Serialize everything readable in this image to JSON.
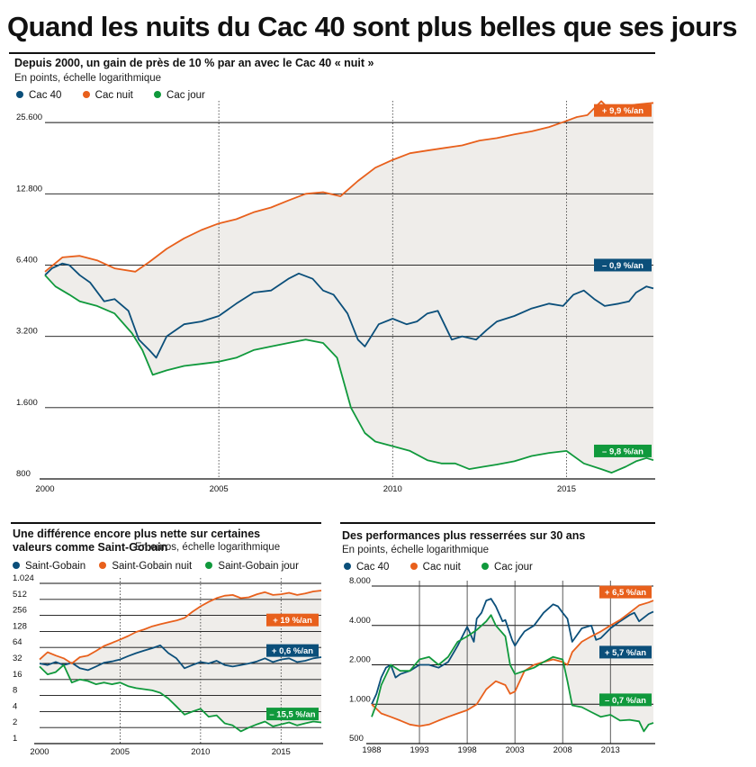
{
  "headline": "Quand les nuits du Cac 40 sont plus belles que ses jours",
  "colors": {
    "cac40": "#0b4f7a",
    "nuit": "#e8601c",
    "jour": "#10993c",
    "fill": "#efedea"
  },
  "chart_data": [
    {
      "type": "line",
      "title": "Depuis 2000, un gain de près de 10 % par an avec le Cac 40 « nuit »",
      "subtitle": "En points, échelle logarithmique",
      "yscale": "log",
      "ylim": [
        800,
        30000
      ],
      "xlim": [
        2000,
        2017.5
      ],
      "yticks": [
        800,
        1600,
        3200,
        6400,
        12800,
        25600
      ],
      "yticklabels": [
        "800",
        "1.600",
        "3.200",
        "6.400",
        "12.800",
        "25.600"
      ],
      "xticks": [
        2000,
        2005,
        2010,
        2015
      ],
      "xticklabels": [
        "2000",
        "2005",
        "2010",
        "2015"
      ],
      "series": [
        {
          "name": "Cac 40",
          "key": "cac40",
          "tag": "– 0,9 %/an",
          "tag_y": 6400,
          "x": [
            2000,
            2000.2,
            2000.5,
            2000.7,
            2001,
            2001.3,
            2001.7,
            2002,
            2002.4,
            2002.7,
            2003,
            2003.2,
            2003.5,
            2004,
            2004.5,
            2005,
            2005.5,
            2006,
            2006.5,
            2007,
            2007.3,
            2007.7,
            2008,
            2008.3,
            2008.7,
            2009,
            2009.2,
            2009.6,
            2010,
            2010.4,
            2010.7,
            2011,
            2011.3,
            2011.7,
            2012,
            2012.4,
            2012.7,
            2013,
            2013.5,
            2014,
            2014.5,
            2014.9,
            2015.2,
            2015.5,
            2015.8,
            2016.1,
            2016.5,
            2016.8,
            2017,
            2017.3,
            2017.5
          ],
          "y": [
            5800,
            6200,
            6500,
            6400,
            5800,
            5400,
            4500,
            4600,
            4100,
            3100,
            2800,
            2600,
            3200,
            3600,
            3700,
            3900,
            4400,
            4900,
            5000,
            5600,
            5900,
            5600,
            5000,
            4800,
            4000,
            3100,
            2900,
            3600,
            3800,
            3600,
            3700,
            4000,
            4100,
            3100,
            3200,
            3100,
            3400,
            3700,
            3900,
            4200,
            4400,
            4300,
            4800,
            5000,
            4600,
            4300,
            4400,
            4500,
            4900,
            5200,
            5100
          ]
        },
        {
          "name": "Cac nuit",
          "key": "nuit",
          "tag": "+ 9,9 %/an",
          "tag_y": 28800,
          "x": [
            2000,
            2000.5,
            2001,
            2001.5,
            2002,
            2002.6,
            2003,
            2003.5,
            2004,
            2004.5,
            2005,
            2005.5,
            2006,
            2006.5,
            2007,
            2007.5,
            2008,
            2008.5,
            2009,
            2009.5,
            2010,
            2010.5,
            2011,
            2011.5,
            2012,
            2012.5,
            2013,
            2013.5,
            2014,
            2014.5,
            2015,
            2015.3,
            2015.6,
            2016,
            2016.3,
            2016.6,
            2017,
            2017.5
          ],
          "y": [
            6000,
            6900,
            7000,
            6700,
            6200,
            6000,
            6600,
            7500,
            8300,
            9000,
            9600,
            10000,
            10700,
            11200,
            12000,
            12800,
            13000,
            12500,
            14500,
            16500,
            17800,
            19000,
            19500,
            20000,
            20500,
            21500,
            22000,
            22800,
            23500,
            24500,
            26000,
            27000,
            27500,
            31500,
            28500,
            29800,
            30500,
            31000
          ]
        },
        {
          "name": "Cac jour",
          "key": "jour",
          "tag": "– 9,8 %/an",
          "tag_y": 1050,
          "x": [
            2000,
            2000.3,
            2000.7,
            2001,
            2001.5,
            2002,
            2002.5,
            2002.8,
            2003.1,
            2003.5,
            2004,
            2004.5,
            2005,
            2005.5,
            2006,
            2006.5,
            2007,
            2007.5,
            2008,
            2008.4,
            2008.8,
            2009.2,
            2009.5,
            2010,
            2010.5,
            2011,
            2011.4,
            2011.8,
            2012.2,
            2012.6,
            2013,
            2013.5,
            2014,
            2014.5,
            2015,
            2015.5,
            2016,
            2016.3,
            2016.7,
            2017,
            2017.3,
            2017.5
          ],
          "y": [
            5800,
            5200,
            4800,
            4500,
            4300,
            4000,
            3300,
            2800,
            2200,
            2300,
            2400,
            2450,
            2500,
            2600,
            2800,
            2900,
            3000,
            3100,
            3000,
            2600,
            1600,
            1250,
            1150,
            1100,
            1050,
            960,
            930,
            930,
            880,
            900,
            920,
            950,
            1000,
            1030,
            1050,
            930,
            880,
            850,
            900,
            950,
            980,
            960
          ]
        }
      ]
    },
    {
      "type": "line",
      "title": "Une différence encore plus nette sur certaines valeurs comme Saint-Gobain",
      "subtitle": "En euros, échelle logarithmique",
      "yscale": "log",
      "ylim": [
        1,
        1024
      ],
      "xlim": [
        2000,
        2017.5
      ],
      "yticks": [
        1,
        2,
        4,
        8,
        16,
        32,
        64,
        128,
        256,
        512,
        1024
      ],
      "yticklabels": [
        "1",
        "2",
        "4",
        "8",
        "16",
        "32",
        "64",
        "128",
        "256",
        "512",
        "1.024"
      ],
      "xticks": [
        2000,
        2005,
        2010,
        2015
      ],
      "xticklabels": [
        "2000",
        "2005",
        "2010",
        "2015"
      ],
      "series": [
        {
          "name": "Saint-Gobain",
          "key": "cac40",
          "tag": "+ 0,6 %/an",
          "tag_y": 56,
          "x": [
            2000,
            2000.5,
            2001,
            2001.5,
            2002,
            2002.5,
            2003,
            2003.5,
            2004,
            2004.5,
            2005,
            2005.5,
            2006,
            2006.5,
            2007,
            2007.5,
            2008,
            2008.5,
            2009,
            2009.5,
            2010,
            2010.5,
            2011,
            2011.5,
            2012,
            2012.5,
            2013,
            2013.5,
            2014,
            2014.5,
            2015,
            2015.5,
            2016,
            2016.5,
            2017,
            2017.5
          ],
          "y": [
            32,
            30,
            34,
            30,
            33,
            26,
            24,
            28,
            33,
            35,
            38,
            44,
            50,
            56,
            62,
            70,
            50,
            40,
            26,
            30,
            34,
            32,
            36,
            30,
            28,
            30,
            32,
            35,
            40,
            34,
            38,
            40,
            34,
            36,
            40,
            42
          ]
        },
        {
          "name": "Saint-Gobain nuit",
          "key": "nuit",
          "tag": "+ 19 %/an",
          "tag_y": 210,
          "x": [
            2000,
            2000.5,
            2001,
            2001.5,
            2002,
            2002.5,
            2003,
            2003.5,
            2004,
            2004.5,
            2005,
            2005.5,
            2006,
            2006.5,
            2007,
            2007.5,
            2008,
            2008.5,
            2009,
            2009.5,
            2010,
            2010.5,
            2011,
            2011.5,
            2012,
            2012.5,
            2013,
            2013.5,
            2014,
            2014.5,
            2015,
            2015.5,
            2016,
            2016.5,
            2017,
            2017.5
          ],
          "y": [
            38,
            52,
            45,
            40,
            32,
            42,
            45,
            55,
            68,
            78,
            90,
            105,
            125,
            140,
            160,
            175,
            190,
            205,
            230,
            300,
            380,
            460,
            540,
            600,
            620,
            540,
            560,
            640,
            700,
            620,
            640,
            680,
            620,
            660,
            720,
            750
          ]
        },
        {
          "name": "Saint-Gobain jour",
          "key": "jour",
          "tag": "– 15,5 %/an",
          "tag_y": 3.6,
          "x": [
            2000,
            2000.5,
            2001,
            2001.5,
            2002,
            2002.5,
            2003,
            2003.5,
            2004,
            2004.5,
            2005,
            2005.5,
            2006,
            2006.5,
            2007,
            2007.5,
            2008,
            2008.5,
            2009,
            2009.5,
            2010,
            2010.5,
            2011,
            2011.5,
            2012,
            2012.5,
            2013,
            2013.5,
            2014,
            2014.5,
            2015,
            2015.5,
            2016,
            2016.5,
            2017,
            2017.5
          ],
          "y": [
            28,
            20,
            22,
            30,
            14,
            16,
            15,
            13,
            14,
            13,
            14,
            12,
            11,
            10.5,
            10,
            9,
            7,
            5,
            3.5,
            4,
            4.5,
            3.2,
            3.4,
            2.4,
            2.2,
            1.7,
            2,
            2.3,
            2.6,
            2.1,
            2.3,
            2.5,
            2.2,
            2.4,
            2.6,
            2.5
          ]
        }
      ]
    },
    {
      "type": "line",
      "title": "Des performances plus resserrées sur 30 ans",
      "subtitle": "En points, échelle logarithmique",
      "yscale": "log",
      "ylim": [
        500,
        8000
      ],
      "xlim": [
        1988,
        2017.5
      ],
      "yticks": [
        500,
        1000,
        2000,
        4000,
        8000
      ],
      "yticklabels": [
        "500",
        "1.000",
        "2.000",
        "4.000",
        "8.000"
      ],
      "xticks": [
        1988,
        1993,
        1998,
        2003,
        2008,
        2013
      ],
      "xticklabels": [
        "1988",
        "1993",
        "1998",
        "2003",
        "2008",
        "2013"
      ],
      "series": [
        {
          "name": "Cac 40",
          "key": "cac40",
          "tag": "+ 5,7 %/an",
          "tag_y": 2500,
          "x": [
            1988,
            1988.5,
            1989,
            1989.5,
            1990,
            1990.5,
            1991,
            1992,
            1993,
            1994,
            1995,
            1996,
            1997,
            1998,
            1998.7,
            1999,
            1999.5,
            2000,
            2000.5,
            2001,
            2001.7,
            2002,
            2002.7,
            2003,
            2003.5,
            2004,
            2005,
            2006,
            2007,
            2007.5,
            2008,
            2008.5,
            2009,
            2010,
            2011,
            2011.5,
            2012,
            2013,
            2014,
            2015,
            2015.5,
            2016,
            2017,
            2017.5
          ],
          "y": [
            1000,
            1200,
            1600,
            1900,
            2000,
            1600,
            1700,
            1800,
            2000,
            2000,
            1900,
            2100,
            2800,
            3900,
            3000,
            4500,
            5000,
            6200,
            6400,
            5600,
            4300,
            4400,
            3100,
            2800,
            3200,
            3600,
            4000,
            5000,
            5800,
            5600,
            5000,
            4500,
            3000,
            3800,
            4000,
            3100,
            3200,
            3800,
            4300,
            4800,
            5000,
            4300,
            4900,
            5100
          ]
        },
        {
          "name": "Cac nuit",
          "key": "nuit",
          "tag": "+ 6,5 %/an",
          "tag_y": 7200,
          "x": [
            1988,
            1989,
            1990,
            1991,
            1992,
            1993,
            1994,
            1995,
            1996,
            1997,
            1998,
            1999,
            2000,
            2001,
            2002,
            2002.5,
            2003,
            2004,
            2005,
            2006,
            2007,
            2008,
            2008.5,
            2009,
            2010,
            2011,
            2012,
            2013,
            2014,
            2015,
            2016,
            2017,
            2017.5
          ],
          "y": [
            1000,
            850,
            800,
            750,
            700,
            680,
            700,
            750,
            800,
            850,
            900,
            1000,
            1300,
            1500,
            1400,
            1200,
            1250,
            1800,
            2000,
            2100,
            2200,
            2100,
            2000,
            2500,
            3000,
            3300,
            3600,
            4000,
            4400,
            5000,
            5700,
            6000,
            6200
          ]
        },
        {
          "name": "Cac jour",
          "key": "jour",
          "tag": "– 0,7 %/an",
          "tag_y": 1080,
          "x": [
            1988,
            1988.5,
            1989,
            1990,
            1991,
            1992,
            1993,
            1994,
            1995,
            1996,
            1997,
            1998,
            1999,
            2000,
            2000.5,
            2001,
            2002,
            2002.5,
            2003,
            2004,
            2005,
            2006,
            2007,
            2008,
            2008.5,
            2009,
            2010,
            2011,
            2012,
            2013,
            2014,
            2015,
            2016,
            2016.5,
            2017,
            2017.5
          ],
          "y": [
            800,
            1000,
            1400,
            2000,
            1800,
            1800,
            2200,
            2300,
            2000,
            2300,
            3000,
            3300,
            3700,
            4300,
            4800,
            4000,
            3300,
            2000,
            1700,
            1800,
            1900,
            2100,
            2300,
            2200,
            1500,
            980,
            950,
            870,
            800,
            830,
            750,
            760,
            740,
            620,
            700,
            720
          ]
        }
      ]
    }
  ]
}
